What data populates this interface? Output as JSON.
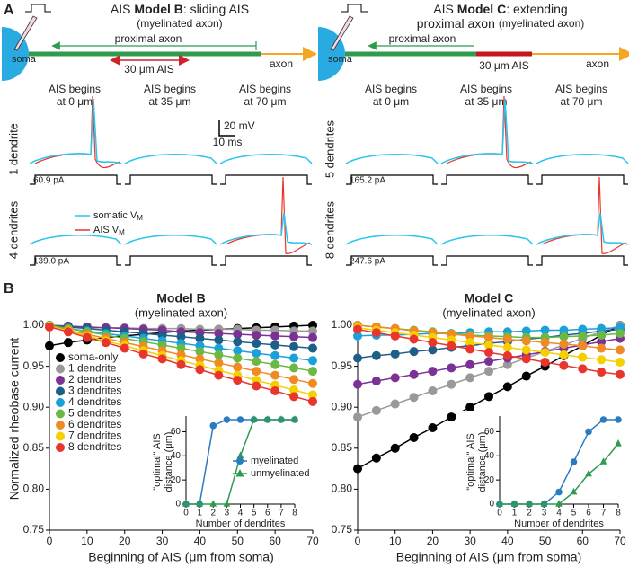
{
  "panel_a": {
    "label": "A",
    "models": [
      {
        "title": [
          "AIS ",
          "Model B",
          ": sliding AIS"
        ],
        "subtitle": [
          "(myelinated axon)"
        ],
        "soma": "soma",
        "proximal_axon": "proximal axon",
        "ais": "30 μm AIS",
        "axon": "axon",
        "columns": [
          [
            "AIS begins",
            "at 0 μm"
          ],
          [
            "AIS begins",
            "at 35 μm"
          ],
          [
            "AIS begins",
            "at 70 μm"
          ]
        ],
        "rows": [
          {
            "label": "1 dendrite",
            "color": "#999999",
            "current": "60.9 pA"
          },
          {
            "label": "4 dendrites",
            "color": "#29abe2",
            "current": "139.0 pA"
          }
        ]
      },
      {
        "title": [
          "AIS ",
          "Model C",
          ": extending"
        ],
        "subtitle": [
          "proximal axon",
          "(myelinated axon)"
        ],
        "soma": "soma",
        "proximal_axon": "proximal axon",
        "ais": "30 μm AIS",
        "axon": "axon",
        "columns": [
          [
            "AIS begins",
            "at 0 μm"
          ],
          [
            "AIS begins",
            "at 35 μm"
          ],
          [
            "AIS begins",
            "at 70 μm"
          ]
        ],
        "rows": [
          {
            "label": "5 dendrites",
            "color": "#6bb944",
            "current": "165.2 pA"
          },
          {
            "label": "8 dendrites",
            "color": "#e8362d",
            "current": "247.6 pA"
          }
        ]
      }
    ],
    "scale_bar": {
      "voltage": "20 mV",
      "time": "10 ms"
    },
    "legend": [
      {
        "text": "somatic V",
        "sub": "M",
        "color": "#29c4ef"
      },
      {
        "text": "AIS V",
        "sub": "M",
        "color": "#e8362d"
      }
    ]
  },
  "panel_b_label": "B",
  "chart_data": [
    {
      "type": "line",
      "title": "Model B",
      "subtitle": "(myelinated axon)",
      "xlabel": "Beginning of AIS (μm from soma)",
      "ylabel": "Normalized rheobase current",
      "x": [
        0,
        5,
        10,
        15,
        20,
        25,
        30,
        35,
        40,
        45,
        50,
        55,
        60,
        65,
        70
      ],
      "xlim": [
        0,
        70
      ],
      "xticks": [
        0,
        10,
        20,
        30,
        40,
        50,
        60,
        70
      ],
      "ylim": [
        0.75,
        1.0
      ],
      "yticks": [
        0.75,
        {
          "value": 0.8,
          "label": "0.80"
        },
        0.85,
        {
          "value": 0.9,
          "label": "0.90"
        },
        0.95,
        {
          "value": 1.0,
          "label": "1.00"
        }
      ],
      "legend": "left",
      "marker": "circle",
      "series": [
        {
          "name": "soma-only",
          "color": "#000000",
          "values": [
            0.975,
            0.979,
            0.982,
            0.985,
            0.987,
            0.989,
            0.991,
            0.993,
            0.994,
            0.995,
            0.996,
            0.997,
            0.998,
            0.999,
            1.0
          ]
        },
        {
          "name": "1 dendrite",
          "color": "#999999",
          "values": [
            0.998,
            0.998,
            0.997,
            0.997,
            0.997,
            0.996,
            0.996,
            0.996,
            0.995,
            0.995,
            0.995,
            0.994,
            0.994,
            0.993,
            0.993
          ]
        },
        {
          "name": "2 dendrites",
          "color": "#7b3294",
          "values": [
            1.0,
            0.999,
            0.998,
            0.997,
            0.996,
            0.995,
            0.994,
            0.992,
            0.991,
            0.99,
            0.989,
            0.988,
            0.987,
            0.986,
            0.985
          ]
        },
        {
          "name": "3 dendrites",
          "color": "#1d5f86",
          "values": [
            1.0,
            0.998,
            0.996,
            0.994,
            0.992,
            0.99,
            0.988,
            0.986,
            0.984,
            0.982,
            0.98,
            0.978,
            0.976,
            0.974,
            0.972
          ]
        },
        {
          "name": "4 dendrites",
          "color": "#1ba1d9",
          "values": [
            0.999,
            0.996,
            0.993,
            0.99,
            0.987,
            0.984,
            0.981,
            0.978,
            0.975,
            0.972,
            0.969,
            0.966,
            0.963,
            0.96,
            0.957
          ]
        },
        {
          "name": "5 dendrites",
          "color": "#6bb944",
          "values": [
            1.0,
            0.996,
            0.992,
            0.988,
            0.984,
            0.98,
            0.976,
            0.972,
            0.968,
            0.964,
            0.96,
            0.956,
            0.952,
            0.948,
            0.944
          ]
        },
        {
          "name": "6 dendrites",
          "color": "#f08a24",
          "values": [
            0.999,
            0.994,
            0.989,
            0.984,
            0.979,
            0.974,
            0.969,
            0.964,
            0.959,
            0.954,
            0.949,
            0.944,
            0.939,
            0.934,
            0.929
          ]
        },
        {
          "name": "7 dendrites",
          "color": "#f5d000",
          "values": [
            0.999,
            0.993,
            0.987,
            0.981,
            0.975,
            0.969,
            0.963,
            0.957,
            0.951,
            0.945,
            0.939,
            0.933,
            0.927,
            0.921,
            0.915
          ]
        },
        {
          "name": "8 dendrites",
          "color": "#e8362d",
          "values": [
            0.998,
            0.992,
            0.985,
            0.979,
            0.972,
            0.965,
            0.959,
            0.952,
            0.946,
            0.939,
            0.933,
            0.926,
            0.92,
            0.913,
            0.907
          ]
        }
      ]
    },
    {
      "type": "line",
      "xlabel": "Number of dendrites",
      "ylabel": [
        "\"optimal\" AIS",
        "distance (μm)"
      ],
      "x": [
        0,
        1,
        2,
        3,
        4,
        5,
        6,
        7,
        8
      ],
      "xlim": [
        0,
        8
      ],
      "xticks": [
        0,
        1,
        2,
        3,
        4,
        5,
        6,
        7,
        8
      ],
      "ylim": [
        0,
        70
      ],
      "yticks": [
        0,
        20,
        40,
        60
      ],
      "legend": "right",
      "series": [
        {
          "name": "myelinated",
          "color": "#2a7bbf",
          "marker": "circle",
          "values": [
            0,
            0,
            65,
            70,
            70,
            70,
            70,
            70,
            70
          ]
        },
        {
          "name": "unmyelinated",
          "color": "#2e9b4f",
          "marker": "triangle",
          "values": [
            0,
            0,
            0,
            0,
            40,
            70,
            70,
            70,
            70
          ]
        }
      ]
    },
    {
      "type": "line",
      "title": "Model C",
      "subtitle": "(myelinated axon)",
      "xlabel": "Beginning of AIS (μm from soma)",
      "x": [
        0,
        5,
        10,
        15,
        20,
        25,
        30,
        35,
        40,
        45,
        50,
        55,
        60,
        65,
        70
      ],
      "xlim": [
        0,
        70
      ],
      "xticks": [
        0,
        10,
        20,
        30,
        40,
        50,
        60,
        70
      ],
      "ylim": [
        0.75,
        1.0
      ],
      "yticks": [
        0.75,
        {
          "value": 0.8,
          "label": "0.80"
        },
        0.85,
        {
          "value": 0.9,
          "label": "0.90"
        },
        0.95,
        {
          "value": 1.0,
          "label": "1.00"
        }
      ],
      "marker": "circle",
      "series": [
        {
          "color": "#000000",
          "values": [
            0.825,
            0.838,
            0.85,
            0.863,
            0.875,
            0.888,
            0.9,
            0.913,
            0.925,
            0.938,
            0.95,
            0.963,
            0.975,
            0.988,
            1.0
          ]
        },
        {
          "color": "#999999",
          "values": [
            0.888,
            0.896,
            0.904,
            0.912,
            0.92,
            0.928,
            0.936,
            0.944,
            0.952,
            0.96,
            0.968,
            0.976,
            0.984,
            0.992,
            1.0
          ]
        },
        {
          "color": "#7b3294",
          "values": [
            0.928,
            0.932,
            0.936,
            0.94,
            0.944,
            0.948,
            0.952,
            0.956,
            0.96,
            0.964,
            0.968,
            0.972,
            0.976,
            0.98,
            0.984
          ]
        },
        {
          "color": "#1d5f86",
          "values": [
            0.96,
            0.963,
            0.965,
            0.968,
            0.97,
            0.973,
            0.975,
            0.978,
            0.98,
            0.983,
            0.985,
            0.988,
            0.99,
            0.993,
            0.995
          ]
        },
        {
          "color": "#1ba1d9",
          "values": [
            0.987,
            0.988,
            0.988,
            0.989,
            0.99,
            0.99,
            0.991,
            0.992,
            0.992,
            0.993,
            0.994,
            0.994,
            0.995,
            0.996,
            0.997
          ]
        },
        {
          "color": "#6bb944",
          "values": [
            1.0,
            0.998,
            0.996,
            0.994,
            0.992,
            0.99,
            0.988,
            0.987,
            0.986,
            0.985,
            0.985,
            0.986,
            0.987,
            0.988,
            0.99
          ]
        },
        {
          "color": "#f08a24",
          "values": [
            1.0,
            0.998,
            0.996,
            0.993,
            0.991,
            0.989,
            0.987,
            0.985,
            0.983,
            0.981,
            0.979,
            0.977,
            0.975,
            0.972,
            0.97
          ]
        },
        {
          "color": "#f5d000",
          "values": [
            0.997,
            0.994,
            0.991,
            0.988,
            0.985,
            0.982,
            0.979,
            0.976,
            0.973,
            0.97,
            0.967,
            0.964,
            0.961,
            0.958,
            0.955
          ]
        },
        {
          "color": "#e8362d",
          "values": [
            0.995,
            0.991,
            0.987,
            0.983,
            0.979,
            0.975,
            0.971,
            0.967,
            0.963,
            0.959,
            0.955,
            0.951,
            0.947,
            0.943,
            0.94
          ]
        }
      ]
    },
    {
      "type": "line",
      "xlabel": "Number of dendrites",
      "ylabel": [
        "\"optimal\" AIS",
        "distance (μm)"
      ],
      "x": [
        0,
        1,
        2,
        3,
        4,
        5,
        6,
        7,
        8
      ],
      "xlim": [
        0,
        8
      ],
      "xticks": [
        0,
        1,
        2,
        3,
        4,
        5,
        6,
        7,
        8
      ],
      "ylim": [
        0,
        70
      ],
      "yticks": [
        0,
        20,
        40,
        60
      ],
      "series": [
        {
          "color": "#2a7bbf",
          "marker": "circle",
          "values": [
            0,
            0,
            0,
            0,
            10,
            35,
            60,
            70,
            70
          ]
        },
        {
          "color": "#2e9b4f",
          "marker": "triangle",
          "values": [
            0,
            0,
            0,
            0,
            0,
            10,
            25,
            35,
            50
          ]
        }
      ]
    }
  ]
}
